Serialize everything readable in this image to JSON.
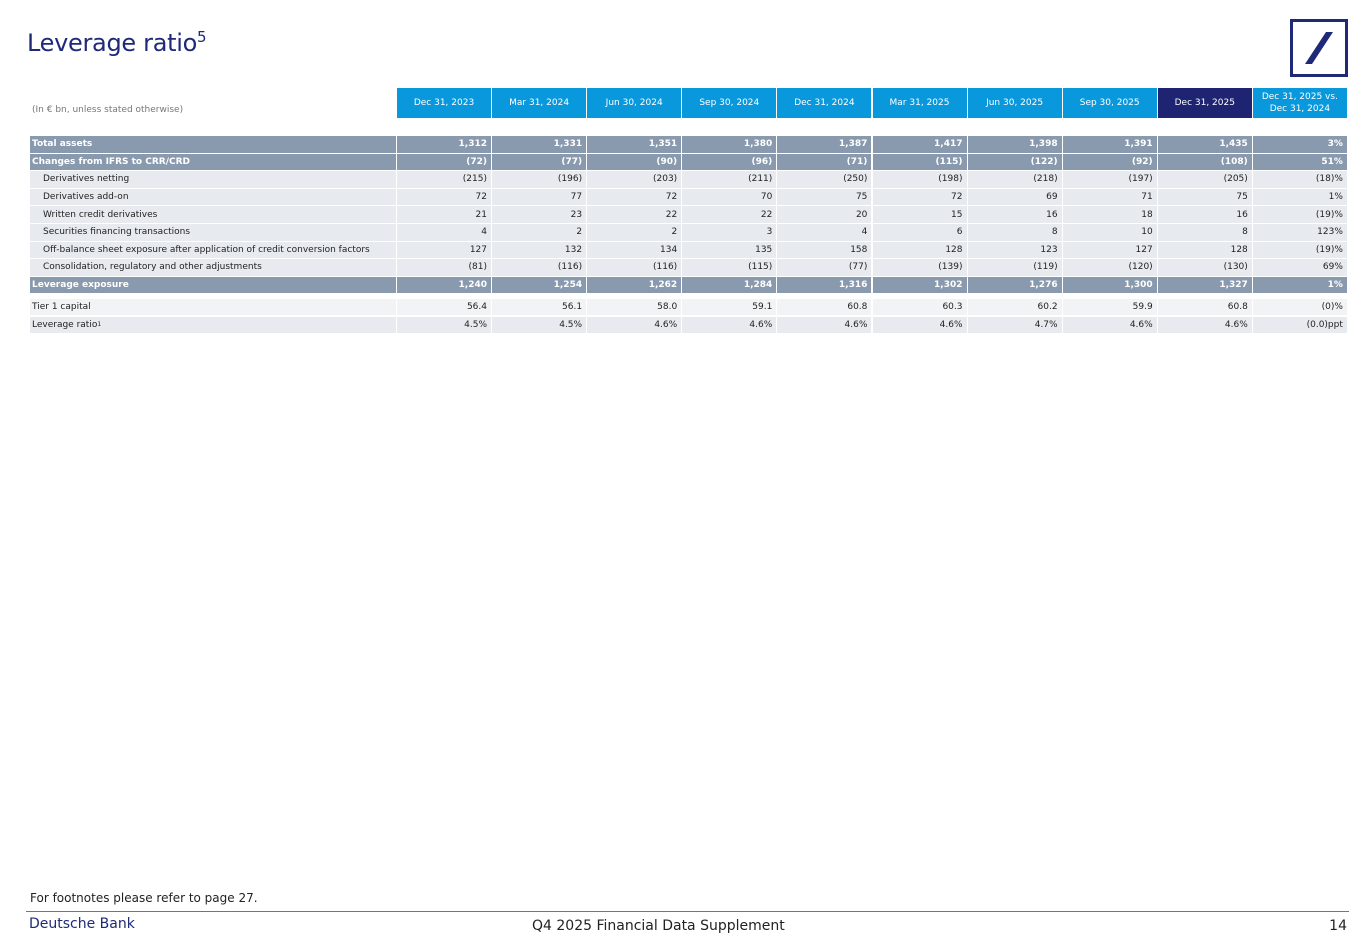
{
  "header": {
    "title": "Leverage ratio",
    "title_superscript": "5"
  },
  "table": {
    "unit_note": "(In € bn, unless stated otherwise)",
    "columns": [
      "Dec 31, 2023",
      "Mar 31, 2024",
      "Jun 30, 2024",
      "Sep 30, 2024",
      "Dec 31, 2024",
      "Mar 31, 2025",
      "Jun 30, 2025",
      "Sep 30, 2025",
      "Dec 31, 2025",
      "Dec 31, 2025 vs. Dec 31, 2024"
    ],
    "rows": [
      {
        "label": "Total assets",
        "values": [
          "1,312",
          "1,331",
          "1,351",
          "1,380",
          "1,387",
          "1,417",
          "1,398",
          "1,391",
          "1,435",
          "3%"
        ]
      },
      {
        "label": "Changes from IFRS to CRR/CRD",
        "values": [
          "(72)",
          "(77)",
          "(90)",
          "(96)",
          "(71)",
          "(115)",
          "(122)",
          "(92)",
          "(108)",
          "51%"
        ]
      },
      {
        "label": "Derivatives netting",
        "values": [
          "(215)",
          "(196)",
          "(203)",
          "(211)",
          "(250)",
          "(198)",
          "(218)",
          "(197)",
          "(205)",
          "(18)%"
        ]
      },
      {
        "label": "Derivatives add-on",
        "values": [
          "72",
          "77",
          "72",
          "70",
          "75",
          "72",
          "69",
          "71",
          "75",
          "1%"
        ]
      },
      {
        "label": "Written credit derivatives",
        "values": [
          "21",
          "23",
          "22",
          "22",
          "20",
          "15",
          "16",
          "18",
          "16",
          "(19)%"
        ]
      },
      {
        "label": "Securities financing transactions",
        "values": [
          "4",
          "2",
          "2",
          "3",
          "4",
          "6",
          "8",
          "10",
          "8",
          "123%"
        ]
      },
      {
        "label": "Off-balance sheet exposure after application of credit conversion factors",
        "values": [
          "127",
          "132",
          "134",
          "135",
          "158",
          "128",
          "123",
          "127",
          "128",
          "(19)%"
        ]
      },
      {
        "label": "Consolidation, regulatory and other adjustments",
        "values": [
          "(81)",
          "(116)",
          "(116)",
          "(115)",
          "(77)",
          "(139)",
          "(119)",
          "(120)",
          "(130)",
          "69%"
        ]
      },
      {
        "label": "Leverage exposure",
        "values": [
          "1,240",
          "1,254",
          "1,262",
          "1,284",
          "1,316",
          "1,302",
          "1,276",
          "1,300",
          "1,327",
          "1%"
        ]
      },
      {
        "label": "Tier 1 capital",
        "values": [
          "56.4",
          "56.1",
          "58.0",
          "59.1",
          "60.8",
          "60.3",
          "60.2",
          "59.9",
          "60.8",
          "(0)%"
        ]
      },
      {
        "label": "Leverage ratio",
        "superscript": "1",
        "values": [
          "4.5%",
          "4.5%",
          "4.6%",
          "4.6%",
          "4.6%",
          "4.6%",
          "4.7%",
          "4.6%",
          "4.6%",
          "(0.0)ppt"
        ]
      }
    ]
  },
  "footer": {
    "note": "For footnotes please refer to page 27.",
    "brand": "Deutsche Bank",
    "document": "Q4 2025 Financial Data Supplement",
    "page": "14"
  }
}
